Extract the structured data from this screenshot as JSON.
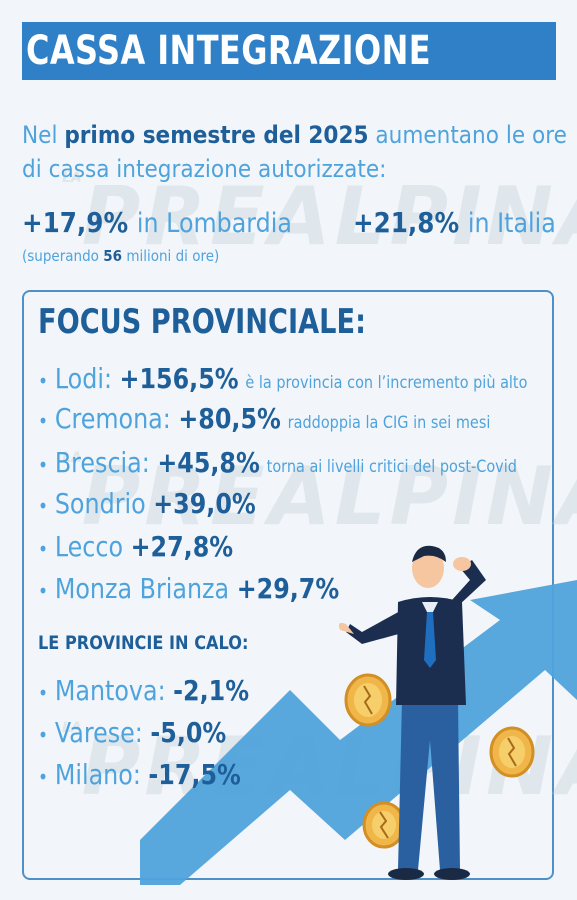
{
  "header": {
    "title": "CASSA INTEGRAZIONE"
  },
  "intro": {
    "line1_a": "Nel ",
    "line1_b": "primo semestre del 2025",
    "line1_c": " aumentano le ore",
    "line2": "di cassa integrazione autorizzate:"
  },
  "stats": {
    "lombardia_value": "+17,9%",
    "lombardia_label": "in Lombardia",
    "italia_value": "+21,8%",
    "italia_label": "in Italia",
    "note_a": "(superando ",
    "note_b": "56",
    "note_c": " milioni di ore)"
  },
  "watermark": {
    "small": "LA",
    "text": "PREALPINA"
  },
  "focus": {
    "title": "FOCUS PROVINCIALE:",
    "bullet": "•",
    "items": [
      {
        "name": "Lodi: ",
        "pct": "+156,5%",
        "desc": "è la provincia con l’incremento più alto"
      },
      {
        "name": "Cremona: ",
        "pct": "+80,5%",
        "desc": "raddoppia la CIG in sei mesi"
      },
      {
        "name": "Brescia: ",
        "pct": "+45,8%",
        "desc": "torna ai livelli critici del post-Covid"
      },
      {
        "name": "Sondrio ",
        "pct": "+39,0%",
        "desc": ""
      },
      {
        "name": "Lecco ",
        "pct": "+27,8%",
        "desc": ""
      },
      {
        "name": "Monza Brianza ",
        "pct": "+29,7%",
        "desc": ""
      }
    ],
    "calo_title": "LE PROVINCIE IN CALO:",
    "calo_items": [
      {
        "name": "Mantova: ",
        "pct": "-2,1%"
      },
      {
        "name": "Varese: ",
        "pct": "-5,0%"
      },
      {
        "name": "Milano: ",
        "pct": "-17,5%"
      }
    ]
  },
  "colors": {
    "brand_blue": "#2f80c6",
    "dark_blue": "#1f5f99",
    "light_blue": "#4fa3dc",
    "background": "#f2f6fa",
    "coin_gold": "#f0b64a"
  },
  "illustration": {
    "icon": "worried-man-with-rising-arrow-and-coins-illustration"
  }
}
